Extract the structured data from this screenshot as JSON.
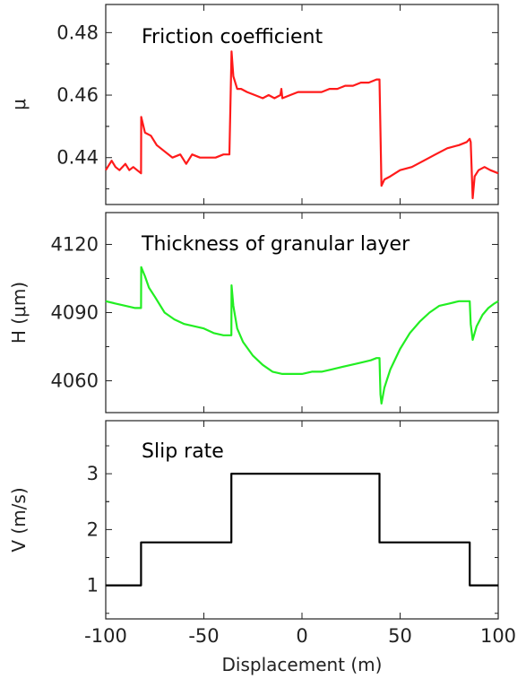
{
  "chart_data": [
    {
      "type": "line",
      "title": "Friction coefficient",
      "xlabel": "",
      "ylabel": "μ",
      "xlim": [
        -100,
        100
      ],
      "ylim": [
        0.425,
        0.489
      ],
      "yticks": [
        0.44,
        0.46,
        0.48
      ],
      "ytick_labels": [
        "0.44",
        "0.46",
        "0.48"
      ],
      "xticks": [
        -100,
        -50,
        0,
        50,
        100
      ],
      "series": [
        {
          "color": "#ff1a1a",
          "x": [
            -100,
            -97,
            -95,
            -93,
            -90,
            -88,
            -86,
            -84,
            -82,
            -81.9,
            -80,
            -77,
            -74,
            -70,
            -66,
            -62,
            -59,
            -56,
            -52,
            -48,
            -44,
            -40,
            -37,
            -35.9,
            -35,
            -33,
            -31,
            -28,
            -24,
            -20,
            -17,
            -14,
            -11,
            -10.5,
            -10,
            -6,
            -2,
            2,
            6,
            10,
            14,
            18,
            22,
            26,
            30,
            34,
            38,
            39.5,
            40.5,
            42,
            45,
            50,
            56,
            62,
            68,
            74,
            80,
            84,
            85.5,
            86,
            87,
            88,
            90,
            93,
            96,
            100
          ],
          "y": [
            0.436,
            0.439,
            0.437,
            0.436,
            0.438,
            0.436,
            0.437,
            0.436,
            0.435,
            0.453,
            0.448,
            0.447,
            0.444,
            0.442,
            0.44,
            0.441,
            0.438,
            0.441,
            0.44,
            0.44,
            0.44,
            0.441,
            0.441,
            0.474,
            0.466,
            0.462,
            0.462,
            0.461,
            0.46,
            0.459,
            0.46,
            0.459,
            0.46,
            0.462,
            0.459,
            0.46,
            0.461,
            0.461,
            0.461,
            0.461,
            0.462,
            0.462,
            0.463,
            0.463,
            0.464,
            0.464,
            0.465,
            0.465,
            0.431,
            0.433,
            0.434,
            0.436,
            0.437,
            0.439,
            0.441,
            0.443,
            0.444,
            0.445,
            0.446,
            0.445,
            0.427,
            0.434,
            0.436,
            0.437,
            0.436,
            0.435
          ]
        }
      ]
    },
    {
      "type": "line",
      "title": "Thickness of granular layer",
      "xlabel": "",
      "ylabel": "H (μm)",
      "xlim": [
        -100,
        100
      ],
      "ylim": [
        4046,
        4134
      ],
      "yticks": [
        4060,
        4090,
        4120
      ],
      "ytick_labels": [
        "4060",
        "4090",
        "4120"
      ],
      "xticks": [
        -100,
        -50,
        0,
        50,
        100
      ],
      "series": [
        {
          "color": "#22ee22",
          "x": [
            -100,
            -95,
            -90,
            -85,
            -82,
            -81.9,
            -80,
            -78,
            -75,
            -70,
            -65,
            -60,
            -55,
            -50,
            -45,
            -40,
            -36,
            -35.9,
            -35,
            -33,
            -30,
            -25,
            -20,
            -15,
            -10,
            -5,
            0,
            5,
            10,
            15,
            20,
            25,
            30,
            35,
            38,
            39.5,
            40,
            40.5,
            42,
            45,
            50,
            55,
            60,
            65,
            70,
            75,
            80,
            84,
            85.5,
            86,
            87,
            89,
            92,
            95,
            98,
            100
          ],
          "y": [
            4095,
            4094,
            4093,
            4092,
            4092,
            4110,
            4106,
            4101,
            4097,
            4090,
            4087,
            4085,
            4084,
            4083,
            4081,
            4080,
            4080,
            4102,
            4093,
            4083,
            4077,
            4071,
            4067,
            4064,
            4063,
            4063,
            4063,
            4064,
            4064,
            4065,
            4066,
            4067,
            4068,
            4069,
            4070,
            4070,
            4054,
            4050,
            4057,
            4065,
            4074,
            4081,
            4086,
            4090,
            4093,
            4094,
            4095,
            4095,
            4095,
            4085,
            4078,
            4084,
            4089,
            4092,
            4094,
            4095
          ]
        }
      ]
    },
    {
      "type": "line",
      "title": "Slip rate",
      "xlabel": "Displacement (m)",
      "ylabel": "V (m/s)",
      "xlim": [
        -100,
        100
      ],
      "ylim": [
        0.4,
        3.95
      ],
      "yticks": [
        1,
        2,
        3
      ],
      "ytick_labels": [
        "1",
        "2",
        "3"
      ],
      "xticks": [
        -100,
        -50,
        0,
        50,
        100
      ],
      "xtick_labels": [
        "-100",
        "-50",
        "0",
        "50",
        "100"
      ],
      "series": [
        {
          "color": "#000000",
          "x": [
            -100,
            -82,
            -82,
            -36,
            -36,
            39.5,
            39.5,
            85.5,
            85.5,
            100
          ],
          "y": [
            1,
            1,
            1.77,
            1.77,
            3,
            3,
            1.77,
            1.77,
            1,
            1
          ]
        }
      ]
    }
  ]
}
